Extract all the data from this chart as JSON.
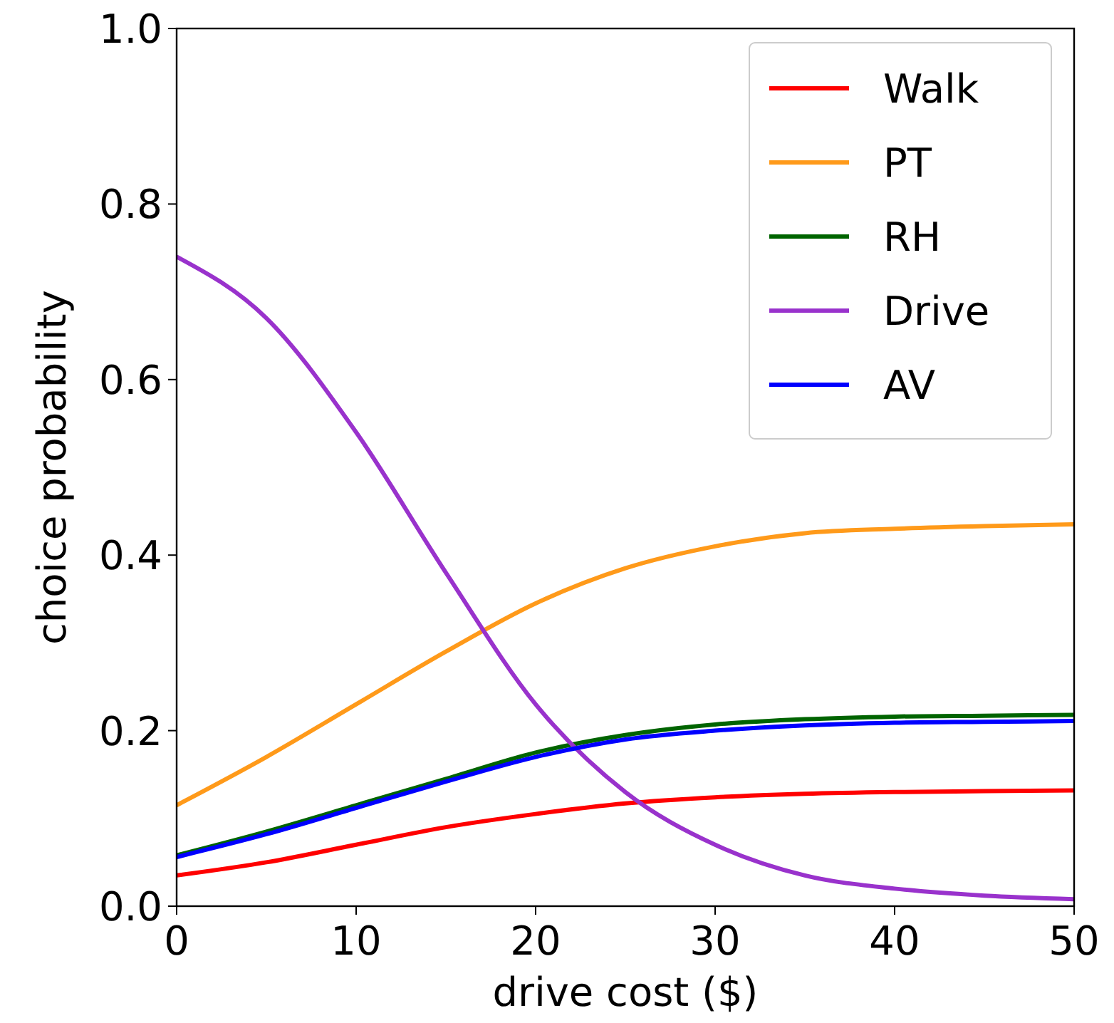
{
  "chart_data": {
    "type": "line",
    "xlabel": "drive cost ($)",
    "ylabel": "choice probability",
    "x": [
      0,
      5,
      10,
      15,
      20,
      25,
      30,
      35,
      40,
      45,
      50
    ],
    "series": [
      {
        "name": "Walk",
        "color": "#ff0000",
        "values": [
          0.035,
          0.05,
          0.07,
          0.09,
          0.105,
          0.117,
          0.124,
          0.128,
          0.13,
          0.131,
          0.132
        ]
      },
      {
        "name": "PT",
        "color": "#ff9a1a",
        "values": [
          0.115,
          0.17,
          0.23,
          0.29,
          0.345,
          0.385,
          0.41,
          0.425,
          0.43,
          0.433,
          0.435
        ]
      },
      {
        "name": "RH",
        "color": "#006400",
        "values": [
          0.058,
          0.085,
          0.115,
          0.145,
          0.175,
          0.195,
          0.207,
          0.213,
          0.216,
          0.217,
          0.218
        ]
      },
      {
        "name": "Drive",
        "color": "#9932cc",
        "values": [
          0.74,
          0.67,
          0.54,
          0.38,
          0.23,
          0.13,
          0.07,
          0.035,
          0.02,
          0.012,
          0.008
        ]
      },
      {
        "name": "AV",
        "color": "#0000ff",
        "values": [
          0.056,
          0.082,
          0.112,
          0.142,
          0.17,
          0.19,
          0.2,
          0.206,
          0.209,
          0.21,
          0.211
        ]
      }
    ],
    "xlim": [
      0,
      50
    ],
    "xticks": [
      0,
      10,
      20,
      30,
      40,
      50
    ],
    "ylim": [
      0,
      1
    ],
    "yticks": [
      {
        "value": 0,
        "label": "0.0"
      },
      {
        "value": 0.2,
        "label": "0.2"
      },
      {
        "value": 0.4,
        "label": "0.4"
      },
      {
        "value": 0.6,
        "label": "0.6"
      },
      {
        "value": 0.8,
        "label": "0.8"
      },
      {
        "value": 1,
        "label": "1.0"
      }
    ],
    "legend": "top right",
    "grid": false,
    "line_style": "solid"
  }
}
